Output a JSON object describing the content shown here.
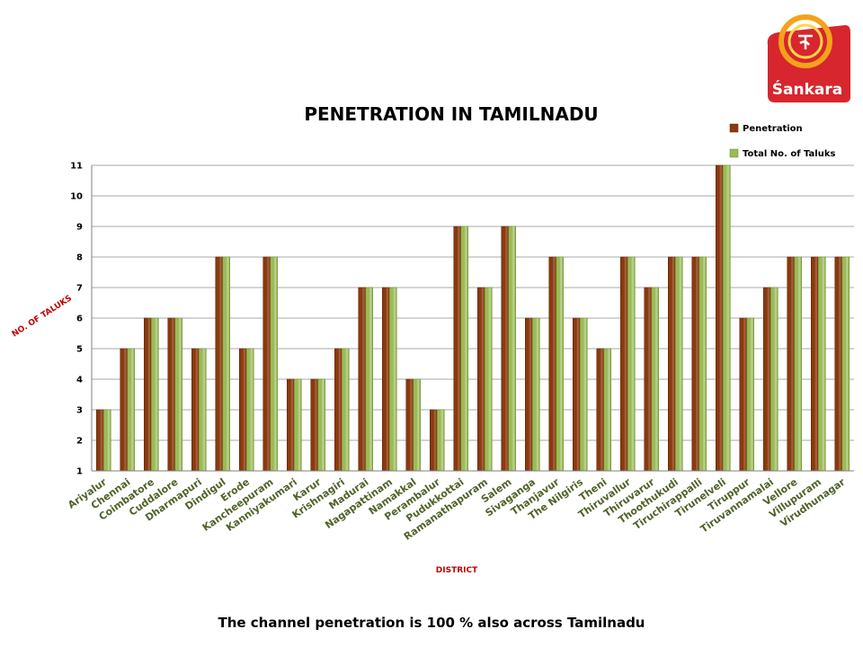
{
  "chart_data": {
    "type": "bar",
    "title": "PENETRATION IN TAMILNADU",
    "xlabel": "DISTRICT",
    "ylabel": "NO. OF TALUKS",
    "ylim": [
      1,
      11
    ],
    "yticks": [
      1,
      2,
      3,
      4,
      5,
      6,
      7,
      8,
      9,
      10,
      11
    ],
    "grid": true,
    "legend_position": "top-right",
    "categories": [
      "Ariyalur",
      "Chennai",
      "Coimbatore",
      "Cuddalore",
      "Dharmapuri",
      "Dindigul",
      "Erode",
      "Kancheepuram",
      "Kanniyakumari",
      "Karur",
      "Krishnagiri",
      "Madurai",
      "Nagapattinam",
      "Namakkal",
      "Perambalur",
      "Pudukkottai",
      "Ramanathapuram",
      "Salem",
      "Sivaganga",
      "Thanjavur",
      "The Nilgiris",
      "Theni",
      "Thiruvallur",
      "Thiruvarur",
      "Thoothukudi",
      "Tiruchirappalli",
      "Tirunelveli",
      "Tiruppur",
      "Tiruvannamalai",
      "Vellore",
      "Villupuram",
      "Virudhunagar"
    ],
    "series": [
      {
        "name": "Penetration",
        "color": "#8b3a0e",
        "values": [
          3,
          5,
          6,
          6,
          5,
          8,
          5,
          8,
          4,
          4,
          5,
          7,
          7,
          4,
          3,
          9,
          7,
          9,
          6,
          8,
          6,
          5,
          8,
          7,
          8,
          8,
          11,
          6,
          7,
          8,
          8,
          8
        ]
      },
      {
        "name": "Total No. of Taluks",
        "color": "#9bbb59",
        "values": [
          3,
          5,
          6,
          6,
          5,
          8,
          5,
          8,
          4,
          4,
          5,
          7,
          7,
          4,
          3,
          9,
          7,
          9,
          6,
          8,
          6,
          5,
          8,
          7,
          8,
          8,
          11,
          6,
          7,
          8,
          8,
          8
        ]
      }
    ]
  },
  "footer": {
    "caption": "The channel penetration is 100 % also across Tamilnadu"
  },
  "logo": {
    "brand": "Śankara",
    "symbol": "श्री",
    "colors": {
      "primary": "#d7262e",
      "accent": "#f5a21b"
    }
  }
}
